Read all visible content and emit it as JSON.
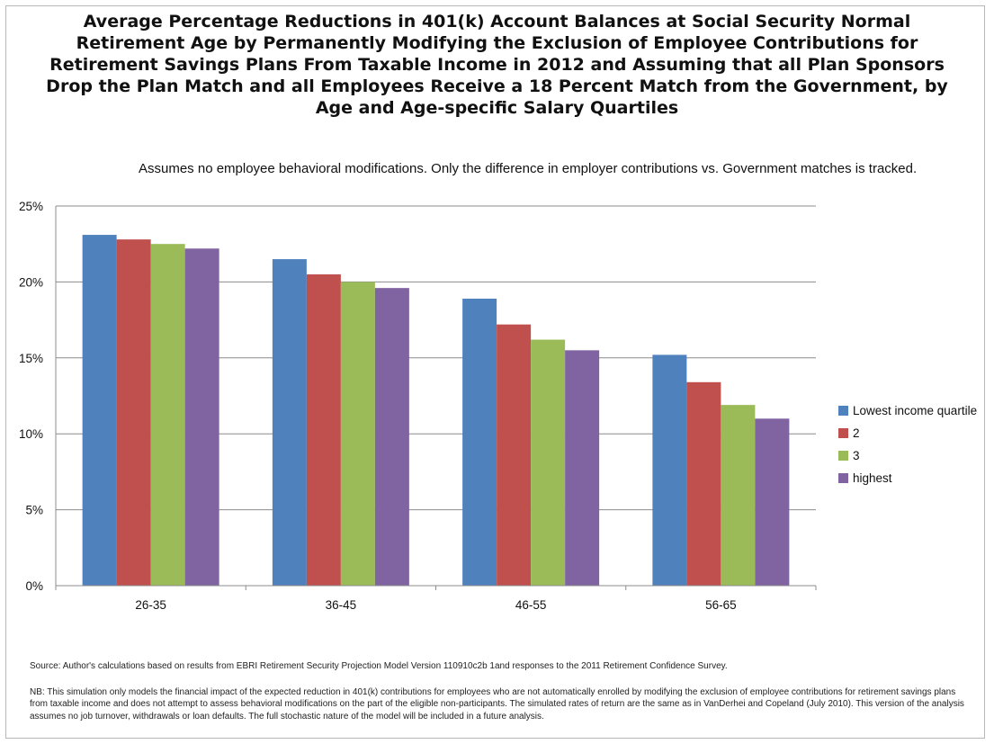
{
  "chart_data": {
    "type": "bar",
    "title": "Average Percentage Reductions in 401(k) Account Balances at Social Security Normal Retirement Age by Permanently Modifying the Exclusion of Employee Contributions for Retirement Savings Plans From Taxable Income in 2012 and Assuming that all Plan Sponsors Drop the Plan Match and all Employees Receive a 18 Percent Match from the Government, by Age and Age-specific Salary Quartiles",
    "subtitle": "Assumes no employee behavioral modifications.  Only the difference in employer contributions vs. Government matches is tracked.",
    "categories": [
      "26-35",
      "36-45",
      "46-55",
      "56-65"
    ],
    "series": [
      {
        "name": "Lowest income quartile",
        "color": "#4F81BD",
        "values": [
          23.1,
          21.5,
          18.9,
          15.2
        ]
      },
      {
        "name": "2",
        "color": "#C0504D",
        "values": [
          22.8,
          20.5,
          17.2,
          13.4
        ]
      },
      {
        "name": "3",
        "color": "#9BBB59",
        "values": [
          22.5,
          20.0,
          16.2,
          11.9
        ]
      },
      {
        "name": "highest",
        "color": "#8064A2",
        "values": [
          22.2,
          19.6,
          15.5,
          11.0
        ]
      }
    ],
    "ylim": [
      0,
      25
    ],
    "yticks": [
      0,
      5,
      10,
      15,
      20,
      25
    ],
    "ytick_labels": [
      "0%",
      "5%",
      "10%",
      "15%",
      "20%",
      "25%"
    ],
    "grid": true,
    "legend_position": "right",
    "xlabel": "",
    "ylabel": ""
  },
  "footer": {
    "source": "Source: Author's calculations based on results from EBRI Retirement Security Projection Model Version 110910c2b 1and  responses to the 2011 Retirement Confidence Survey.",
    "note": "NB: This simulation only models the financial impact of the expected reduction in 401(k) contributions for employees who are not automatically enrolled by  modifying the exclusion of employee  contributions for retirement savings plans from taxable income and does not attempt to assess behavioral modifications on the part of the eligible non-participants. The simulated rates of return are the same as in VanDerhei and Copeland (July 2010). This version of the analysis assumes no job turnover, withdrawals or loan defaults. The full stochastic nature of the model will be included in a future analysis."
  }
}
